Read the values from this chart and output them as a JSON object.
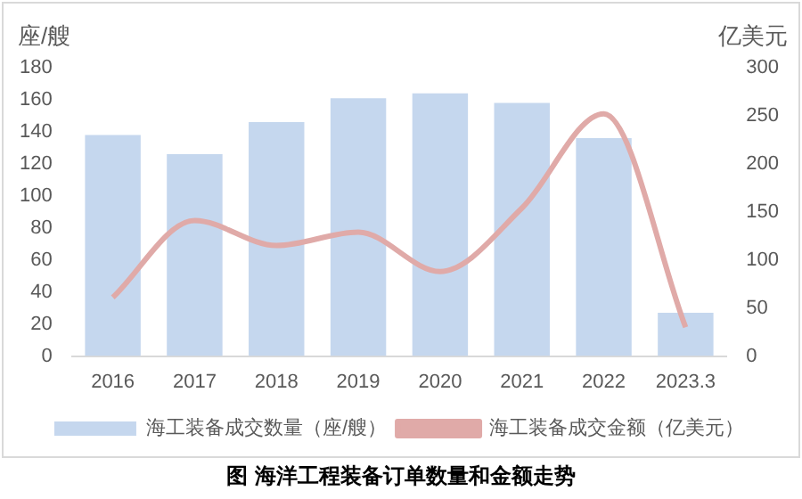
{
  "chart_data": {
    "type": "bar",
    "title": "图  海洋工程装备订单数量和金额走势",
    "ylabel": "座/艘",
    "y2label": "亿美元",
    "categories": [
      "2016",
      "2017",
      "2018",
      "2019",
      "2020",
      "2021",
      "2022",
      "2023.3"
    ],
    "series": [
      {
        "name": "海工装备成交数量（座/艘）",
        "color": "#c5d7ee",
        "values": [
          138,
          126,
          146,
          161,
          164,
          158,
          136,
          27
        ]
      },
      {
        "name": "海工装备成交金额（亿美元）",
        "type": "line",
        "axis": "y2",
        "color": "#e0aaa8",
        "values": [
          61,
          141,
          115,
          129,
          88,
          154,
          252,
          30
        ]
      }
    ],
    "ylim": [
      0,
      180
    ],
    "yticks": [
      0,
      20,
      40,
      60,
      80,
      100,
      120,
      140,
      160,
      180
    ],
    "y2lim": [
      0,
      300
    ],
    "y2ticks": [
      0,
      50,
      100,
      150,
      200,
      250,
      300
    ],
    "grid": false,
    "legend": "bottom",
    "marker": "none",
    "line_style": "solid"
  }
}
